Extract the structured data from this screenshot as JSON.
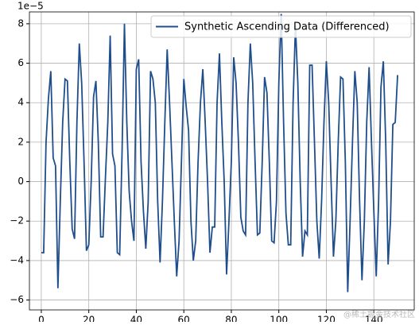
{
  "chart_data": {
    "type": "line",
    "offset_label": "1e−5",
    "legend": "upper right",
    "grid": true,
    "watermark": "@稀土掘金技术社区",
    "xlim": [
      -5,
      157
    ],
    "ylim": [
      -6.5,
      8.6
    ],
    "xticks": [
      0,
      20,
      40,
      60,
      80,
      100,
      120,
      140
    ],
    "yticks": [
      {
        "value": -6,
        "label": "−6"
      },
      {
        "value": -4,
        "label": "−4"
      },
      {
        "value": -2,
        "label": "−2"
      },
      0,
      2,
      4,
      6,
      8
    ],
    "x": [
      0,
      1,
      2,
      3,
      4,
      5,
      6,
      7,
      8,
      9,
      10,
      11,
      12,
      13,
      14,
      15,
      16,
      17,
      18,
      19,
      20,
      21,
      22,
      23,
      24,
      25,
      26,
      27,
      28,
      29,
      30,
      31,
      32,
      33,
      34,
      35,
      36,
      37,
      38,
      39,
      40,
      41,
      42,
      43,
      44,
      45,
      46,
      47,
      48,
      49,
      50,
      51,
      52,
      53,
      54,
      55,
      56,
      57,
      58,
      59,
      60,
      61,
      62,
      63,
      64,
      65,
      66,
      67,
      68,
      69,
      70,
      71,
      72,
      73,
      74,
      75,
      76,
      77,
      78,
      79,
      80,
      81,
      82,
      83,
      84,
      85,
      86,
      87,
      88,
      89,
      90,
      91,
      92,
      93,
      94,
      95,
      96,
      97,
      98,
      99,
      100,
      101,
      102,
      103,
      104,
      105,
      106,
      107,
      108,
      109,
      110,
      111,
      112,
      113,
      114,
      115,
      116,
      117,
      118,
      119,
      120,
      121,
      122,
      123,
      124,
      125,
      126,
      127,
      128,
      129,
      130,
      131,
      132,
      133,
      134,
      135,
      136,
      137,
      138,
      139,
      140,
      141,
      142,
      143,
      144,
      145,
      146,
      147,
      148,
      149,
      150
    ],
    "series": [
      {
        "name": "Synthetic Ascending Data (Differenced)",
        "color": "#1f4e8c",
        "values": [
          -3.6,
          -3.6,
          2,
          4.2,
          5.6,
          1.2,
          0.8,
          -5.4,
          -1,
          3,
          5.2,
          5.1,
          1,
          -2.4,
          -2.9,
          3,
          7,
          5,
          1,
          -3.5,
          -3.2,
          0,
          4.3,
          5.1,
          2,
          -2.8,
          -2.8,
          0.2,
          3,
          7.4,
          1.4,
          0.8,
          -3.6,
          -3.7,
          1.5,
          8,
          3,
          -0.5,
          -2,
          -3,
          5.7,
          6.2,
          1,
          -1.5,
          -3.4,
          -1,
          5.6,
          5.2,
          4,
          -1,
          -4.1,
          -1,
          3,
          6.7,
          4,
          1,
          -2,
          -4.8,
          -3,
          1,
          5.2,
          3.8,
          2.6,
          -2,
          -4,
          -3,
          1,
          4,
          5.7,
          3,
          0,
          -3.6,
          -2.3,
          -2.3,
          4,
          6.5,
          3,
          0,
          -4.7,
          -2,
          1,
          6.3,
          5,
          2,
          -1.8,
          -2.5,
          -2.7,
          4,
          7,
          5,
          1,
          -2.7,
          -2.6,
          1,
          5.3,
          4.5,
          1,
          -3,
          -3.1,
          -1,
          5,
          8.5,
          3,
          -1.6,
          -3.2,
          -3.2,
          4,
          7.9,
          5,
          0,
          -3.8,
          -2.5,
          -2.7,
          5.9,
          5.9,
          2,
          -2,
          -3.9,
          -1,
          3,
          6.1,
          4,
          0,
          -3.8,
          -2,
          2,
          5.3,
          5.2,
          1,
          -5.6,
          -2,
          2,
          5.6,
          4,
          -1,
          -5,
          -2,
          3,
          5.8,
          2,
          -1.5,
          -4.8,
          -1,
          4.8,
          6.1,
          2,
          -4.2,
          -2,
          2.9,
          3,
          5.4
        ]
      }
    ]
  }
}
